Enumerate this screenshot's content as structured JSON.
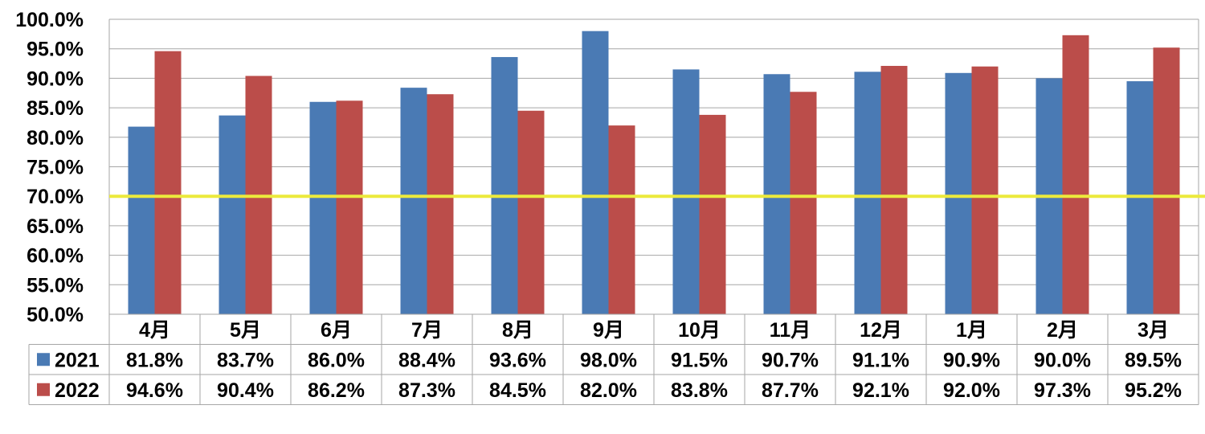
{
  "chart_data": {
    "type": "bar",
    "categories": [
      "4月",
      "5月",
      "6月",
      "7月",
      "8月",
      "9月",
      "10月",
      "11月",
      "12月",
      "1月",
      "2月",
      "3月"
    ],
    "series": [
      {
        "name": "2021",
        "color": "#4a7ab4",
        "values": [
          81.8,
          83.7,
          86.0,
          88.4,
          93.6,
          98.0,
          91.5,
          90.7,
          91.1,
          90.9,
          90.0,
          89.5
        ],
        "labels": [
          "81.8%",
          "83.7%",
          "86.0%",
          "88.4%",
          "93.6%",
          "98.0%",
          "91.5%",
          "90.7%",
          "91.1%",
          "90.9%",
          "90.0%",
          "89.5%"
        ]
      },
      {
        "name": "2022",
        "color": "#bb4d4a",
        "values": [
          94.6,
          90.4,
          86.2,
          87.3,
          84.5,
          82.0,
          83.8,
          87.7,
          92.1,
          92.0,
          97.3,
          95.2
        ],
        "labels": [
          "94.6%",
          "90.4%",
          "86.2%",
          "87.3%",
          "84.5%",
          "82.0%",
          "83.8%",
          "87.7%",
          "92.1%",
          "92.0%",
          "97.3%",
          "95.2%"
        ]
      }
    ],
    "ylim": [
      50,
      100
    ],
    "yticks": [
      "50.0%",
      "55.0%",
      "60.0%",
      "65.0%",
      "70.0%",
      "75.0%",
      "80.0%",
      "85.0%",
      "90.0%",
      "95.0%",
      "100.0%"
    ],
    "reference_line": {
      "value": 70,
      "color": "#ecea3c"
    },
    "grid": true,
    "legend": "data-table"
  }
}
